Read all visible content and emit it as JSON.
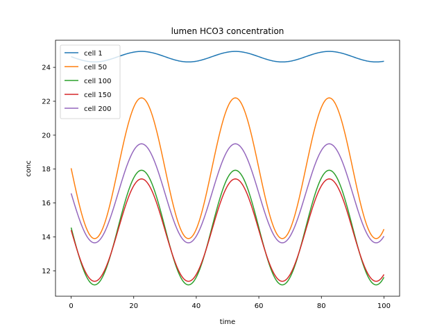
{
  "chart_data": {
    "type": "line",
    "title": "lumen HCO3 concentration",
    "xlabel": "time",
    "ylabel": "conc",
    "xlim": [
      -5,
      105
    ],
    "ylim": [
      10.5,
      25.6
    ],
    "xticks": [
      0,
      20,
      40,
      60,
      80,
      100
    ],
    "yticks": [
      12,
      14,
      16,
      18,
      20,
      22,
      24
    ],
    "grid": false,
    "legend_position": "upper left",
    "x_range": [
      0,
      100
    ],
    "series": [
      {
        "name": "cell 1",
        "color": "#1f77b4",
        "params": {
          "mean": 24.63,
          "amp": 0.31,
          "period": 30,
          "peak": 22.5
        }
      },
      {
        "name": "cell 50",
        "color": "#ff7f0e",
        "params": {
          "mean": 18.05,
          "amp": 4.15,
          "period": 30,
          "peak": 22.5
        }
      },
      {
        "name": "cell 100",
        "color": "#2ca02c",
        "params": {
          "mean": 14.55,
          "amp": 3.38,
          "period": 30,
          "peak": 22.5
        }
      },
      {
        "name": "cell 150",
        "color": "#d62728",
        "params": {
          "mean": 14.4,
          "amp": 3.02,
          "period": 30,
          "peak": 22.5
        }
      },
      {
        "name": "cell 200",
        "color": "#9467bd",
        "params": {
          "mean": 16.57,
          "amp": 2.92,
          "period": 30,
          "peak": 22.5
        }
      }
    ]
  }
}
